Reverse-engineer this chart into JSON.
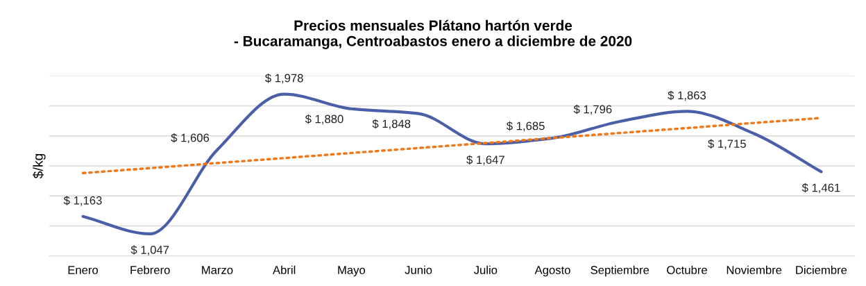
{
  "chart_data": {
    "type": "line",
    "title": "Precios mensuales Plátano hartón verde\n- Bucaramanga, Centroabastos enero a diciembre de 2020",
    "ylabel": "$/kg",
    "categories": [
      "Enero",
      "Febrero",
      "Marzo",
      "Abril",
      "Mayo",
      "Junio",
      "Julio",
      "Agosto",
      "Septiembre",
      "Octubre",
      "Noviembre",
      "Diciembre"
    ],
    "series": [
      {
        "color": "#4a5fa8",
        "values": [
          1163,
          1047,
          1606,
          1978,
          1880,
          1848,
          1647,
          1685,
          1796,
          1863,
          1715,
          1461
        ],
        "value_labels": [
          "$ 1,163",
          "$ 1,047",
          "$ 1,606",
          "$ 1,978",
          "$ 1,880",
          "$ 1,848",
          "$ 1,647",
          "$ 1,685",
          "$ 1,796",
          "$ 1,863",
          "$ 1,715",
          "$ 1,461"
        ]
      },
      {
        "type": "line",
        "color": "#f07818",
        "line_style": "dotted",
        "values": [
          1452,
          1485,
          1519,
          1552,
          1586,
          1619,
          1652,
          1686,
          1719,
          1752,
          1786,
          1819
        ]
      }
    ],
    "ylim": [
      900,
      2100
    ],
    "grid": "y",
    "marker": "none",
    "tick_labels": "x"
  }
}
